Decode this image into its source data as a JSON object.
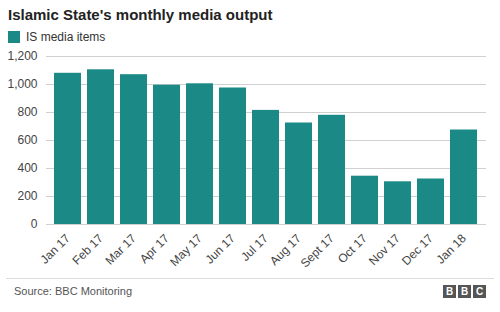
{
  "chart_data": {
    "type": "bar",
    "title": "Islamic State's monthly media output",
    "categories": [
      "Jan 17",
      "Feb 17",
      "Mar 17",
      "Apr 17",
      "May 17",
      "Jun 17",
      "Jul 17",
      "Aug 17",
      "Sept 17",
      "Oct 17",
      "Nov 17",
      "Dec 17",
      "Jan 18"
    ],
    "series": [
      {
        "name": "IS media items",
        "color": "#1b8985",
        "values": [
          1080,
          1105,
          1070,
          995,
          1005,
          975,
          815,
          725,
          780,
          345,
          305,
          325,
          675
        ]
      }
    ],
    "ylim": [
      0,
      1200
    ],
    "yticks": [
      0,
      200,
      400,
      600,
      800,
      {
        "value": 1000,
        "label": "1,000"
      },
      {
        "value": 1200,
        "label": "1,200"
      }
    ],
    "grid": true,
    "legend": "top-left",
    "source": "Source: BBC Monitoring",
    "logo": "BBC"
  }
}
